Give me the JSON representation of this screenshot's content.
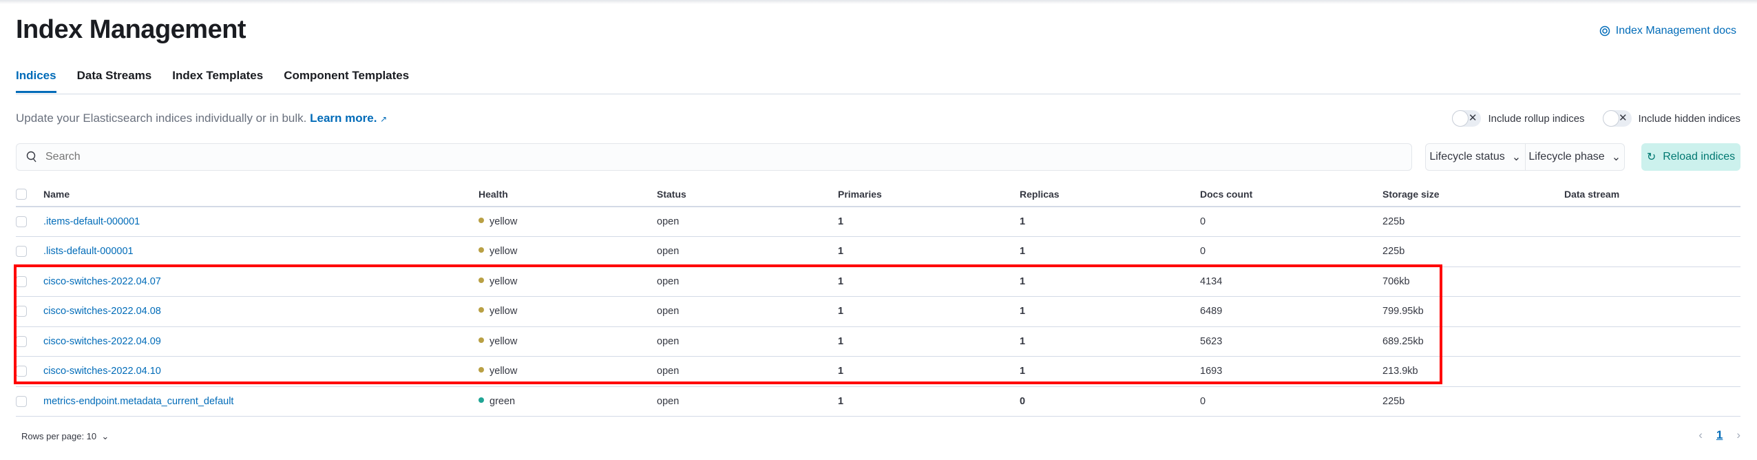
{
  "header": {
    "title": "Index Management",
    "docs_link": "Index Management docs"
  },
  "tabs": [
    {
      "label": "Indices",
      "active": true
    },
    {
      "label": "Data Streams"
    },
    {
      "label": "Index Templates"
    },
    {
      "label": "Component Templates"
    }
  ],
  "description": {
    "text": "Update your Elasticsearch indices individually or in bulk.",
    "link": "Learn more."
  },
  "toggles": {
    "rollup": "Include rollup indices",
    "hidden": "Include hidden indices"
  },
  "search": {
    "placeholder": "Search"
  },
  "filters": {
    "lifecycle_status": "Lifecycle status",
    "lifecycle_phase": "Lifecycle phase"
  },
  "reload_label": "Reload indices",
  "table": {
    "columns": [
      "Name",
      "Health",
      "Status",
      "Primaries",
      "Replicas",
      "Docs count",
      "Storage size",
      "Data stream"
    ],
    "rows": [
      {
        "name": ".items-default-000001",
        "health": "yellow",
        "status": "open",
        "primaries": "1",
        "replicas": "1",
        "docs": "0",
        "size": "225b"
      },
      {
        "name": ".lists-default-000001",
        "health": "yellow",
        "status": "open",
        "primaries": "1",
        "replicas": "1",
        "docs": "0",
        "size": "225b"
      },
      {
        "name": "cisco-switches-2022.04.07",
        "health": "yellow",
        "status": "open",
        "primaries": "1",
        "replicas": "1",
        "docs": "4134",
        "size": "706kb"
      },
      {
        "name": "cisco-switches-2022.04.08",
        "health": "yellow",
        "status": "open",
        "primaries": "1",
        "replicas": "1",
        "docs": "6489",
        "size": "799.95kb"
      },
      {
        "name": "cisco-switches-2022.04.09",
        "health": "yellow",
        "status": "open",
        "primaries": "1",
        "replicas": "1",
        "docs": "5623",
        "size": "689.25kb"
      },
      {
        "name": "cisco-switches-2022.04.10",
        "health": "yellow",
        "status": "open",
        "primaries": "1",
        "replicas": "1",
        "docs": "1693",
        "size": "213.9kb"
      },
      {
        "name": "metrics-endpoint.metadata_current_default",
        "health": "green",
        "status": "open",
        "primaries": "1",
        "replicas": "0",
        "docs": "0",
        "size": "225b"
      }
    ]
  },
  "health_colors": {
    "yellow": "#b9a044",
    "green": "#21a595"
  },
  "pagination": {
    "rows_per_page": "Rows per page: 10",
    "current_page": "1"
  },
  "highlight_color": "#ff0000"
}
